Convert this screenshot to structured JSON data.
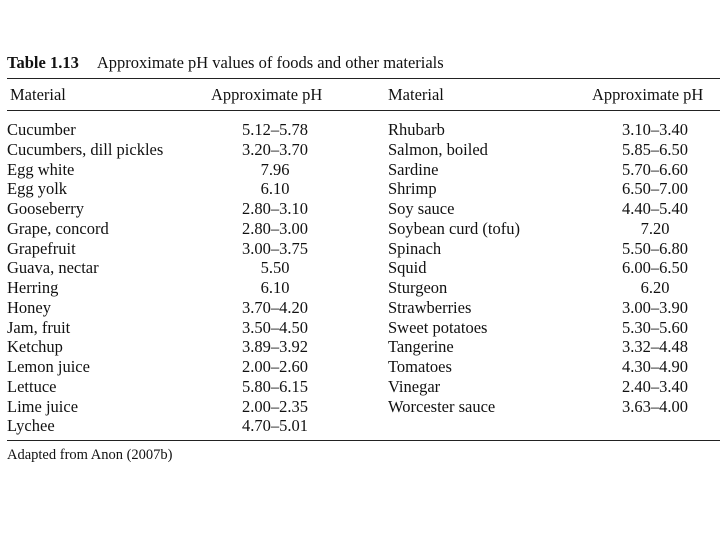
{
  "caption": {
    "number": "Table 1.13",
    "title": "Approximate pH values of foods and other materials"
  },
  "columns": [
    "Material",
    "Approximate pH",
    "Material",
    "Approximate pH"
  ],
  "left_rows": [
    {
      "material": "Cucumber",
      "ph": "5.12–5.78"
    },
    {
      "material": "Cucumbers, dill pickles",
      "ph": "3.20–3.70"
    },
    {
      "material": "Egg white",
      "ph": "7.96"
    },
    {
      "material": "Egg yolk",
      "ph": "6.10"
    },
    {
      "material": "Gooseberry",
      "ph": "2.80–3.10"
    },
    {
      "material": "Grape, concord",
      "ph": "2.80–3.00"
    },
    {
      "material": "Grapefruit",
      "ph": "3.00–3.75"
    },
    {
      "material": "Guava, nectar",
      "ph": "5.50"
    },
    {
      "material": "Herring",
      "ph": "6.10"
    },
    {
      "material": "Honey",
      "ph": "3.70–4.20"
    },
    {
      "material": "Jam, fruit",
      "ph": "3.50–4.50"
    },
    {
      "material": "Ketchup",
      "ph": "3.89–3.92"
    },
    {
      "material": "Lemon juice",
      "ph": "2.00–2.60"
    },
    {
      "material": "Lettuce",
      "ph": "5.80–6.15"
    },
    {
      "material": "Lime juice",
      "ph": "2.00–2.35"
    },
    {
      "material": "Lychee",
      "ph": "4.70–5.01"
    }
  ],
  "right_rows": [
    {
      "material": "Rhubarb",
      "ph": "3.10–3.40"
    },
    {
      "material": "Salmon, boiled",
      "ph": "5.85–6.50"
    },
    {
      "material": "Sardine",
      "ph": "5.70–6.60"
    },
    {
      "material": "Shrimp",
      "ph": "6.50–7.00"
    },
    {
      "material": "Soy sauce",
      "ph": "4.40–5.40"
    },
    {
      "material": "Soybean curd (tofu)",
      "ph": "7.20"
    },
    {
      "material": "Spinach",
      "ph": "5.50–6.80"
    },
    {
      "material": "Squid",
      "ph": "6.00–6.50"
    },
    {
      "material": "Sturgeon",
      "ph": "6.20"
    },
    {
      "material": "Strawberries",
      "ph": "3.00–3.90"
    },
    {
      "material": "Sweet potatoes",
      "ph": "5.30–5.60"
    },
    {
      "material": "Tangerine",
      "ph": "3.32–4.48"
    },
    {
      "material": "Tomatoes",
      "ph": "4.30–4.90"
    },
    {
      "material": "Vinegar",
      "ph": "2.40–3.40"
    },
    {
      "material": "Worcester sauce",
      "ph": "3.63–4.00"
    }
  ],
  "source": "Adapted from Anon (2007b)"
}
